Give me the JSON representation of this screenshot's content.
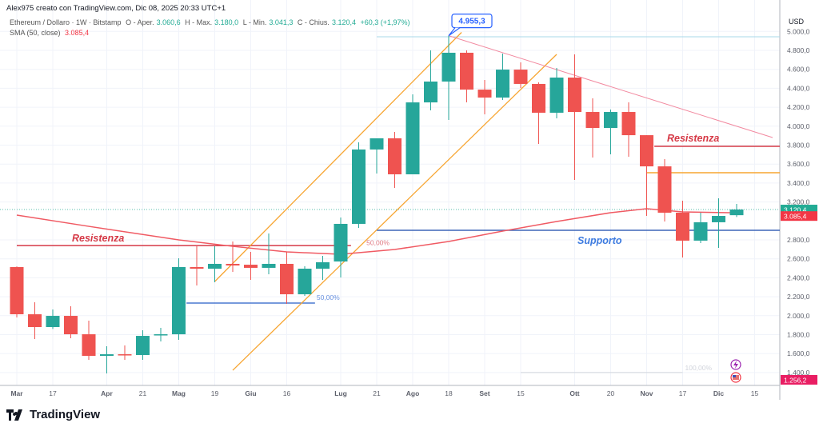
{
  "header": {
    "author_line": "Alex975 creato con TradingView.com, Dic 08, 2025 20:33 UTC+1",
    "symbol": "Ethereum / Dollaro · 1W · Bitstamp",
    "open_label": "O - Aper.",
    "open": "3.060,6",
    "high_label": "H - Max.",
    "high": "3.180,0",
    "low_label": "L - Min.",
    "low": "3.041,3",
    "close_label": "C - Chius.",
    "close": "3.120,4",
    "change": "+60,3 (+1,97%)",
    "sma_label": "SMA (50, close)",
    "sma_value": "3.085,4"
  },
  "axis": {
    "currency": "USD",
    "price_ticks": [
      {
        "v": 5000,
        "t": "5.000,0"
      },
      {
        "v": 4800,
        "t": "4.800,0"
      },
      {
        "v": 4600,
        "t": "4.600,0"
      },
      {
        "v": 4400,
        "t": "4.400,0"
      },
      {
        "v": 4200,
        "t": "4.200,0"
      },
      {
        "v": 4000,
        "t": "4.000,0"
      },
      {
        "v": 3800,
        "t": "3.800,0"
      },
      {
        "v": 3600,
        "t": "3.600,0"
      },
      {
        "v": 3400,
        "t": "3.400,0"
      },
      {
        "v": 3200,
        "t": "3.200,0"
      },
      {
        "v": 2800,
        "t": "2.800,0"
      },
      {
        "v": 2600,
        "t": "2.600,0"
      },
      {
        "v": 2400,
        "t": "2.400,0"
      },
      {
        "v": 2200,
        "t": "2.200,0"
      },
      {
        "v": 2000,
        "t": "2.000,0"
      },
      {
        "v": 1800,
        "t": "1.800,0"
      },
      {
        "v": 1600,
        "t": "1.600,0"
      },
      {
        "v": 1400,
        "t": "1.400,0"
      }
    ],
    "time_ticks": [
      {
        "d": "2025-03-03",
        "t": "Mar",
        "bold": true
      },
      {
        "d": "2025-03-17",
        "t": "17"
      },
      {
        "d": "2025-04-07",
        "t": "Apr",
        "bold": true
      },
      {
        "d": "2025-04-21",
        "t": "21"
      },
      {
        "d": "2025-05-05",
        "t": "Mag",
        "bold": true
      },
      {
        "d": "2025-05-19",
        "t": "19"
      },
      {
        "d": "2025-06-02",
        "t": "Giu",
        "bold": true
      },
      {
        "d": "2025-06-16",
        "t": "16"
      },
      {
        "d": "2025-07-07",
        "t": "Lug",
        "bold": true
      },
      {
        "d": "2025-07-21",
        "t": "21"
      },
      {
        "d": "2025-08-04",
        "t": "Ago",
        "bold": true
      },
      {
        "d": "2025-08-18",
        "t": "18"
      },
      {
        "d": "2025-09-01",
        "t": "Set",
        "bold": true
      },
      {
        "d": "2025-09-15",
        "t": "15"
      },
      {
        "d": "2025-10-06",
        "t": "Ott",
        "bold": true
      },
      {
        "d": "2025-10-20",
        "t": "20"
      },
      {
        "d": "2025-11-03",
        "t": "Nov",
        "bold": true
      },
      {
        "d": "2025-11-17",
        "t": "17"
      },
      {
        "d": "2025-12-01",
        "t": "Dic",
        "bold": true
      },
      {
        "d": "2025-12-15",
        "t": "15"
      }
    ],
    "price_labels": [
      {
        "v": 3120.4,
        "t": "3.120,4",
        "color": "#22ab94"
      },
      {
        "v": 3085.4,
        "t": "3.085,4",
        "color": "#f23645"
      },
      {
        "v": 1256.2,
        "t": "1.256,2",
        "color": "#e91e63"
      }
    ]
  },
  "colors": {
    "up": "#26a69a",
    "down": "#ef5350",
    "sma": "#f05a63",
    "support": "#3d66b8",
    "resistance": "#d63a47",
    "channel": "#f7a531",
    "trend": "#f28aa0"
  },
  "chart_data": {
    "type": "candlestick",
    "timeframe": "1W",
    "ylim": [
      1290,
      5060
    ],
    "grid": true,
    "candles": [
      {
        "d": "2025-03-03",
        "o": 2513,
        "h": 2520,
        "l": 1981,
        "c": 2015
      },
      {
        "d": "2025-03-10",
        "o": 2015,
        "h": 2142,
        "l": 1754,
        "c": 1880
      },
      {
        "d": "2025-03-17",
        "o": 1880,
        "h": 2066,
        "l": 1860,
        "c": 1998
      },
      {
        "d": "2025-03-24",
        "o": 1998,
        "h": 2100,
        "l": 1762,
        "c": 1804
      },
      {
        "d": "2025-03-31",
        "o": 1804,
        "h": 1948,
        "l": 1534,
        "c": 1576
      },
      {
        "d": "2025-04-07",
        "o": 1576,
        "h": 1678,
        "l": 1391,
        "c": 1593
      },
      {
        "d": "2025-04-14",
        "o": 1593,
        "h": 1686,
        "l": 1534,
        "c": 1585
      },
      {
        "d": "2025-04-21",
        "o": 1585,
        "h": 1846,
        "l": 1534,
        "c": 1787
      },
      {
        "d": "2025-04-28",
        "o": 1796,
        "h": 1872,
        "l": 1728,
        "c": 1804
      },
      {
        "d": "2025-05-05",
        "o": 1804,
        "h": 2606,
        "l": 1745,
        "c": 2513
      },
      {
        "d": "2025-05-12",
        "o": 2513,
        "h": 2732,
        "l": 2319,
        "c": 2496
      },
      {
        "d": "2025-05-19",
        "o": 2496,
        "h": 2732,
        "l": 2353,
        "c": 2547
      },
      {
        "d": "2025-05-26",
        "o": 2547,
        "h": 2783,
        "l": 2462,
        "c": 2530
      },
      {
        "d": "2025-06-02",
        "o": 2538,
        "h": 2673,
        "l": 2378,
        "c": 2505
      },
      {
        "d": "2025-06-09",
        "o": 2505,
        "h": 2868,
        "l": 2437,
        "c": 2547
      },
      {
        "d": "2025-06-16",
        "o": 2547,
        "h": 2673,
        "l": 2125,
        "c": 2226
      },
      {
        "d": "2025-06-23",
        "o": 2226,
        "h": 2521,
        "l": 2209,
        "c": 2496
      },
      {
        "d": "2025-06-30",
        "o": 2496,
        "h": 2631,
        "l": 2378,
        "c": 2564
      },
      {
        "d": "2025-07-07",
        "o": 2572,
        "h": 3036,
        "l": 2403,
        "c": 2969
      },
      {
        "d": "2025-07-14",
        "o": 2969,
        "h": 3830,
        "l": 2927,
        "c": 3754
      },
      {
        "d": "2025-07-21",
        "o": 3754,
        "h": 3872,
        "l": 3500,
        "c": 3872
      },
      {
        "d": "2025-07-28",
        "o": 3872,
        "h": 3939,
        "l": 3348,
        "c": 3492
      },
      {
        "d": "2025-08-04",
        "o": 3492,
        "h": 4336,
        "l": 3492,
        "c": 4251
      },
      {
        "d": "2025-08-11",
        "o": 4251,
        "h": 4800,
        "l": 4167,
        "c": 4471
      },
      {
        "d": "2025-08-18",
        "o": 4471,
        "h": 4955.3,
        "l": 4066,
        "c": 4775
      },
      {
        "d": "2025-08-25",
        "o": 4775,
        "h": 4800,
        "l": 4251,
        "c": 4386
      },
      {
        "d": "2025-09-01",
        "o": 4386,
        "h": 4488,
        "l": 4125,
        "c": 4302
      },
      {
        "d": "2025-09-08",
        "o": 4302,
        "h": 4766,
        "l": 4277,
        "c": 4597
      },
      {
        "d": "2025-09-15",
        "o": 4597,
        "h": 4673,
        "l": 4403,
        "c": 4446
      },
      {
        "d": "2025-09-22",
        "o": 4446,
        "h": 4462,
        "l": 3813,
        "c": 4142
      },
      {
        "d": "2025-09-29",
        "o": 4142,
        "h": 4614,
        "l": 4083,
        "c": 4513
      },
      {
        "d": "2025-10-06",
        "o": 4513,
        "h": 4758,
        "l": 3433,
        "c": 4150
      },
      {
        "d": "2025-10-13",
        "o": 4150,
        "h": 4294,
        "l": 3669,
        "c": 3981
      },
      {
        "d": "2025-10-20",
        "o": 3981,
        "h": 4176,
        "l": 3703,
        "c": 4150
      },
      {
        "d": "2025-10-27",
        "o": 4150,
        "h": 4251,
        "l": 3678,
        "c": 3905
      },
      {
        "d": "2025-11-03",
        "o": 3905,
        "h": 3905,
        "l": 3053,
        "c": 3576
      },
      {
        "d": "2025-11-10",
        "o": 3576,
        "h": 3652,
        "l": 2994,
        "c": 3087
      },
      {
        "d": "2025-11-17",
        "o": 3087,
        "h": 3213,
        "l": 2614,
        "c": 2792
      },
      {
        "d": "2025-11-24",
        "o": 2792,
        "h": 3087,
        "l": 2766,
        "c": 2986
      },
      {
        "d": "2025-12-01",
        "o": 2986,
        "h": 3239,
        "l": 2716,
        "c": 3053
      },
      {
        "d": "2025-12-08",
        "o": 3060.6,
        "h": 3180.0,
        "l": 3041.3,
        "c": 3120.4
      }
    ],
    "sma50": [
      {
        "d": "2025-03-03",
        "v": 3062
      },
      {
        "d": "2025-03-31",
        "v": 2943
      },
      {
        "d": "2025-05-05",
        "v": 2800
      },
      {
        "d": "2025-05-26",
        "v": 2732
      },
      {
        "d": "2025-06-16",
        "v": 2673
      },
      {
        "d": "2025-07-07",
        "v": 2648
      },
      {
        "d": "2025-07-28",
        "v": 2699
      },
      {
        "d": "2025-08-18",
        "v": 2783
      },
      {
        "d": "2025-09-08",
        "v": 2893
      },
      {
        "d": "2025-09-29",
        "v": 2994
      },
      {
        "d": "2025-10-20",
        "v": 3087
      },
      {
        "d": "2025-11-03",
        "v": 3129
      },
      {
        "d": "2025-11-17",
        "v": 3095
      },
      {
        "d": "2025-12-08",
        "v": 3085.4
      }
    ],
    "drawings": {
      "resistance_left": {
        "label": "Resistenza",
        "price": 2740,
        "from": "2025-03-03",
        "to": "2025-07-11"
      },
      "resistance_right": {
        "label": "Resistenza",
        "price": 3787,
        "from": "2025-11-06",
        "to": "2025-12-31"
      },
      "level_orange": {
        "price": 3509,
        "from": "2025-11-03",
        "to": "2025-12-31"
      },
      "support": {
        "label": "Supporto",
        "price": 2901,
        "from": "2025-07-21",
        "to": "2025-12-31"
      },
      "fib_blue": {
        "label": "50,00%",
        "price": 2133,
        "from": "2025-05-08",
        "to": "2025-06-27"
      },
      "fib_red_label": {
        "label": "50,00%",
        "price": 2760,
        "d": "2025-07-17"
      },
      "fib_gray": {
        "label": "100,00%",
        "price": 1400,
        "from": "2025-09-15",
        "to": "2025-11-17"
      },
      "ath_line": {
        "price": 4943,
        "from": "2025-07-21",
        "to": "2025-12-31"
      },
      "ath_callout": {
        "label": "4.955,3",
        "price": 4955.3,
        "d": "2025-08-18"
      },
      "channel_upper": [
        {
          "d": "2025-05-19",
          "v": 2360
        },
        {
          "d": "2025-08-23",
          "v": 4990
        }
      ],
      "channel_lower": [
        {
          "d": "2025-05-26",
          "v": 1424
        },
        {
          "d": "2025-09-29",
          "v": 4758
        }
      ],
      "trendline": [
        {
          "d": "2025-08-18",
          "v": 4955
        },
        {
          "d": "2025-12-22",
          "v": 3880
        }
      ]
    },
    "last_price_line": 3120.4
  },
  "footer": {
    "brand": "TradingView"
  },
  "icons": {
    "events": "lightning-icon",
    "economy": "us-flag-icon"
  }
}
